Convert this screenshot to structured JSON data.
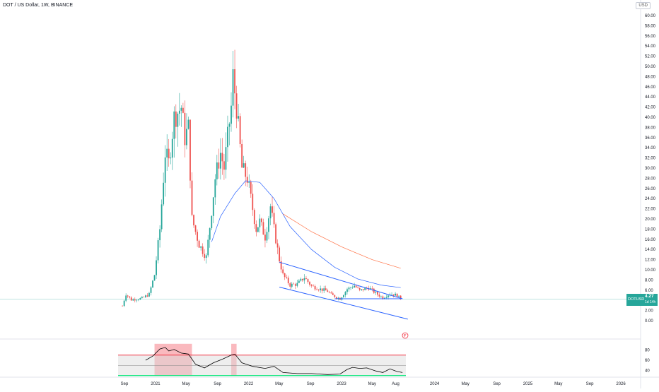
{
  "header": {
    "title": "DOT / US Dollar, 1W, BINANCE",
    "currency": "USD"
  },
  "price_tag": {
    "symbol": "DOTUSD",
    "value": "4.27",
    "countdown": "1d 14h"
  },
  "colors": {
    "up": "#26a69a",
    "down": "#ef5350",
    "channel": "#2962ff",
    "ma_fast": "#2962ff",
    "ma_slow": "#ff7043",
    "rsi_line": "#000000",
    "rsi_upper": "#f23645",
    "rsi_lower": "#00e676",
    "rsi_mid": "#888888",
    "rsi_highlight": "#f23645",
    "price_line": "#26a69a"
  },
  "chart_data": {
    "type": "candlestick",
    "title": "DOT / US Dollar, 1W, BINANCE",
    "price_axis": {
      "min": 0,
      "max": 60,
      "ticks": [
        "0.00",
        "2.00",
        "4.00",
        "6.00",
        "8.00",
        "10.00",
        "12.00",
        "14.00",
        "16.00",
        "18.00",
        "20.00",
        "22.00",
        "24.00",
        "26.00",
        "28.00",
        "30.00",
        "32.00",
        "34.00",
        "36.00",
        "38.00",
        "40.00",
        "42.00",
        "44.00",
        "46.00",
        "48.00",
        "50.00",
        "52.00",
        "54.00",
        "56.00",
        "58.00",
        "60.00"
      ]
    },
    "time_axis": {
      "labels": [
        "Sep",
        "2021",
        "May",
        "Sep",
        "2022",
        "May",
        "Sep",
        "2023",
        "May",
        "Aug",
        "2024",
        "May",
        "Sep",
        "2025",
        "May",
        "Sep",
        "2026"
      ]
    },
    "last_price": 4.27,
    "anchors": [
      [
        "2020-08-24",
        2.9
      ],
      [
        "2020-09-07",
        5.2
      ],
      [
        "2020-09-28",
        4.1
      ],
      [
        "2020-11-09",
        4.4
      ],
      [
        "2020-12-07",
        5.2
      ],
      [
        "2020-12-28",
        9.0
      ],
      [
        "2021-01-18",
        18.0
      ],
      [
        "2021-02-08",
        33.0
      ],
      [
        "2021-02-22",
        31.0
      ],
      [
        "2021-03-15",
        40.0
      ],
      [
        "2021-04-12",
        42.0
      ],
      [
        "2021-04-26",
        36.0
      ],
      [
        "2021-05-10",
        38.0
      ],
      [
        "2021-05-24",
        20.0
      ],
      [
        "2021-06-21",
        15.0
      ],
      [
        "2021-07-19",
        12.5
      ],
      [
        "2021-08-02",
        18.5
      ],
      [
        "2021-08-23",
        28.0
      ],
      [
        "2021-09-13",
        33.0
      ],
      [
        "2021-09-27",
        30.0
      ],
      [
        "2021-10-25",
        42.0
      ],
      [
        "2021-11-01",
        48.0
      ],
      [
        "2021-11-15",
        42.0
      ],
      [
        "2021-12-06",
        30.0
      ],
      [
        "2021-12-27",
        28.0
      ],
      [
        "2022-01-17",
        22.0
      ],
      [
        "2022-01-31",
        18.0
      ],
      [
        "2022-02-14",
        19.5
      ],
      [
        "2022-03-07",
        16.5
      ],
      [
        "2022-03-28",
        22.5
      ],
      [
        "2022-04-11",
        18.0
      ],
      [
        "2022-05-02",
        12.0
      ],
      [
        "2022-05-16",
        9.0
      ],
      [
        "2022-06-13",
        7.0
      ],
      [
        "2022-07-11",
        7.2
      ],
      [
        "2022-08-08",
        8.5
      ],
      [
        "2022-09-05",
        6.8
      ],
      [
        "2022-10-03",
        6.3
      ],
      [
        "2022-11-07",
        5.8
      ],
      [
        "2022-11-21",
        5.1
      ],
      [
        "2022-12-26",
        4.3
      ],
      [
        "2023-01-23",
        6.2
      ],
      [
        "2023-02-20",
        6.9
      ],
      [
        "2023-03-13",
        5.9
      ],
      [
        "2023-04-17",
        6.5
      ],
      [
        "2023-05-15",
        5.4
      ],
      [
        "2023-06-12",
        4.5
      ],
      [
        "2023-07-10",
        5.3
      ],
      [
        "2023-08-07",
        5.0
      ],
      [
        "2023-08-21",
        4.27
      ]
    ],
    "moving_averages": [
      {
        "points": [
          [
            "2021-08-09",
            15.5
          ],
          [
            "2021-09-13",
            20.5
          ],
          [
            "2021-11-08",
            25.0
          ],
          [
            "2021-12-20",
            27.5
          ],
          [
            "2022-02-14",
            27.2
          ],
          [
            "2022-04-11",
            24.0
          ],
          [
            "2022-06-13",
            18.5
          ],
          [
            "2022-09-05",
            14.0
          ],
          [
            "2022-12-05",
            10.5
          ],
          [
            "2023-03-06",
            8.2
          ],
          [
            "2023-06-05",
            7.0
          ],
          [
            "2023-08-21",
            6.5
          ]
        ]
      },
      {
        "points": [
          [
            "2022-05-16",
            21.0
          ],
          [
            "2022-09-05",
            17.5
          ],
          [
            "2023-01-02",
            14.5
          ],
          [
            "2023-05-01",
            12.0
          ],
          [
            "2023-08-21",
            10.3
          ]
        ]
      }
    ],
    "channel": {
      "upper": [
        [
          "2022-05-02",
          11.5
        ],
        [
          "2023-08-28",
          4.3
        ]
      ],
      "lower": [
        [
          "2022-05-02",
          6.6
        ],
        [
          "2023-09-18",
          0.3
        ]
      ],
      "base": [
        [
          "2022-12-05",
          4.3
        ],
        [
          "2023-08-28",
          4.3
        ]
      ]
    },
    "rsi": {
      "axis": {
        "min": 30,
        "max": 90,
        "ticks": [
          "40",
          "60",
          "80"
        ]
      },
      "upper": 70,
      "lower": 30,
      "mid": 50,
      "overbought_zones": [
        [
          "2020-12-28",
          "2021-05-24"
        ],
        [
          "2021-10-25",
          "2021-11-15"
        ]
      ],
      "points": [
        [
          "2020-11-23",
          60
        ],
        [
          "2020-12-21",
          68
        ],
        [
          "2021-01-18",
          82
        ],
        [
          "2021-02-08",
          85
        ],
        [
          "2021-02-22",
          78
        ],
        [
          "2021-03-15",
          81
        ],
        [
          "2021-04-12",
          74
        ],
        [
          "2021-05-10",
          72
        ],
        [
          "2021-06-07",
          52
        ],
        [
          "2021-07-12",
          45
        ],
        [
          "2021-08-16",
          55
        ],
        [
          "2021-09-20",
          62
        ],
        [
          "2021-10-25",
          70
        ],
        [
          "2021-11-08",
          72
        ],
        [
          "2021-12-06",
          55
        ],
        [
          "2022-01-17",
          48
        ],
        [
          "2022-03-07",
          44
        ],
        [
          "2022-04-11",
          48
        ],
        [
          "2022-05-16",
          36
        ],
        [
          "2022-07-11",
          34
        ],
        [
          "2022-09-05",
          34
        ],
        [
          "2022-11-07",
          32
        ],
        [
          "2022-12-26",
          33
        ],
        [
          "2023-01-23",
          42
        ],
        [
          "2023-02-13",
          46
        ],
        [
          "2023-03-13",
          44
        ],
        [
          "2023-04-10",
          45
        ],
        [
          "2023-05-15",
          39
        ],
        [
          "2023-06-12",
          36
        ],
        [
          "2023-07-10",
          43
        ],
        [
          "2023-08-07",
          38
        ],
        [
          "2023-08-28",
          36
        ]
      ]
    }
  }
}
